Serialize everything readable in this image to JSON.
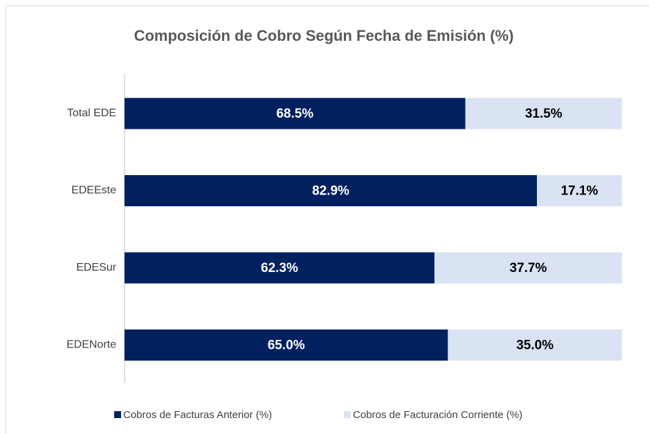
{
  "chart_data": {
    "type": "stacked_bar_horizontal",
    "title": "Composición de Cobro Según Fecha de Emisión (%)",
    "categories": [
      "Total EDE",
      "EDEEste",
      "EDESur",
      "EDENorte"
    ],
    "series": [
      {
        "name": "Cobros de Facturas Anterior (%)",
        "color": "#002060",
        "values": [
          68.5,
          82.9,
          62.3,
          65.0
        ],
        "value_labels": [
          "68.5%",
          "82.9%",
          "62.3%",
          "65.0%"
        ]
      },
      {
        "name": "Cobros de Facturación Corriente (%)",
        "color": "#dae3f3",
        "values": [
          31.5,
          17.1,
          37.7,
          35.0
        ],
        "value_labels": [
          "31.5%",
          "17.1%",
          "37.7%",
          "35.0%"
        ]
      }
    ],
    "xlim": [
      0,
      100
    ],
    "legend": "bottom"
  }
}
